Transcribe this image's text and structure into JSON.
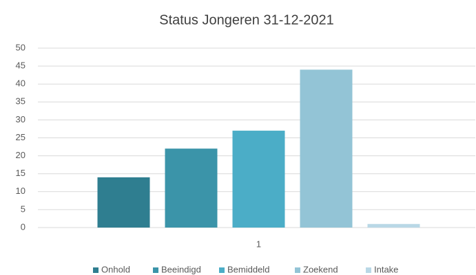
{
  "chart_data": {
    "type": "bar",
    "title": "Status Jongeren 31-12-2021",
    "categories": [
      "1"
    ],
    "series": [
      {
        "name": "Onhold",
        "color": "#2f7e90",
        "values": [
          14
        ]
      },
      {
        "name": "Beeindigd",
        "color": "#3b94a9",
        "values": [
          22
        ]
      },
      {
        "name": "Bemiddeld",
        "color": "#4badc7",
        "values": [
          27
        ]
      },
      {
        "name": "Zoekend",
        "color": "#93c4d6",
        "values": [
          44
        ]
      },
      {
        "name": "Intake",
        "color": "#b9d8e6",
        "values": [
          1
        ]
      }
    ],
    "ylim": [
      0,
      50
    ],
    "yticks": [
      0,
      5,
      10,
      15,
      20,
      25,
      30,
      35,
      40,
      45,
      50
    ],
    "grid": true,
    "legend": "bottom"
  }
}
